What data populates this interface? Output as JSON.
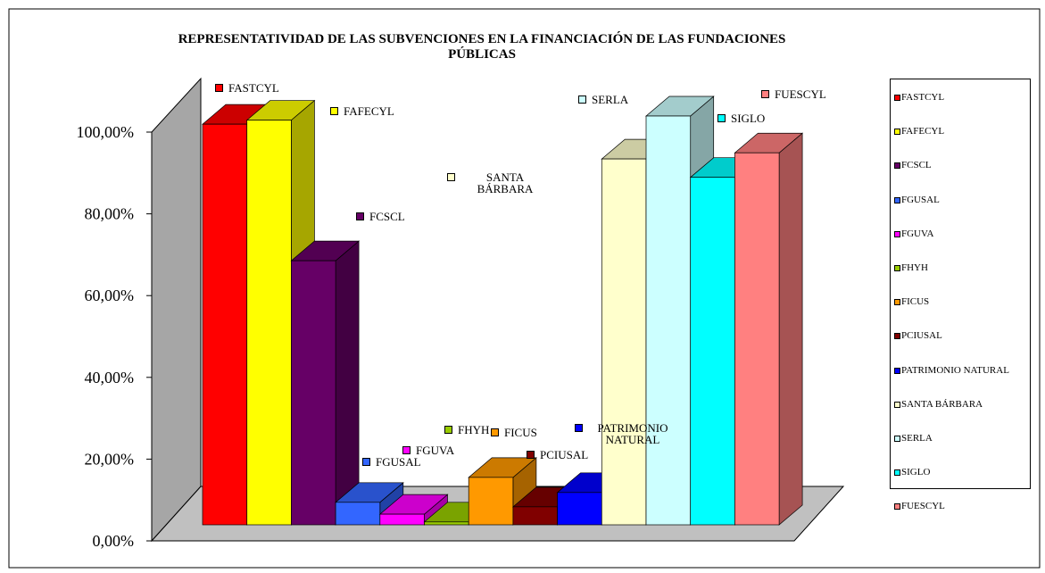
{
  "chart_data": {
    "type": "bar3d",
    "title": "REPRESENTATIVIDAD DE LAS SUBVENCIONES EN LA FINANCIACIÓN DE LAS FUNDACIONES PÚBLICAS",
    "categories": [
      "FASTCYL",
      "FAFECYL",
      "FCSCL",
      "FGUSAL",
      "FGUVA",
      "FHYH",
      "FICUS",
      "PCIUSAL",
      "PATRIMONIO NATURAL",
      "SANTA BÁRBARA",
      "SERLA",
      "SIGLO",
      "FUESCYL"
    ],
    "values": [
      98,
      99,
      64.6,
      5.5,
      2.6,
      0.7,
      11.6,
      4.4,
      7.9,
      89.5,
      100,
      85,
      91
    ],
    "colors": [
      "#ff0000",
      "#ffff00",
      "#660066",
      "#3366ff",
      "#ff00ff",
      "#99cc00",
      "#ff9900",
      "#800000",
      "#0000ff",
      "#ffffcc",
      "#ccffff",
      "#00ffff",
      "#ff8080"
    ],
    "ylim": [
      0,
      100
    ],
    "yticks": [
      {
        "value": 0,
        "label": "0,00%"
      },
      {
        "value": 20,
        "label": "20,00%"
      },
      {
        "value": 40,
        "label": "40,00%"
      },
      {
        "value": 60,
        "label": "60,00%"
      },
      {
        "value": 80,
        "label": "80,00%"
      },
      {
        "value": 100,
        "label": "100,00%"
      }
    ],
    "legend": "right"
  }
}
